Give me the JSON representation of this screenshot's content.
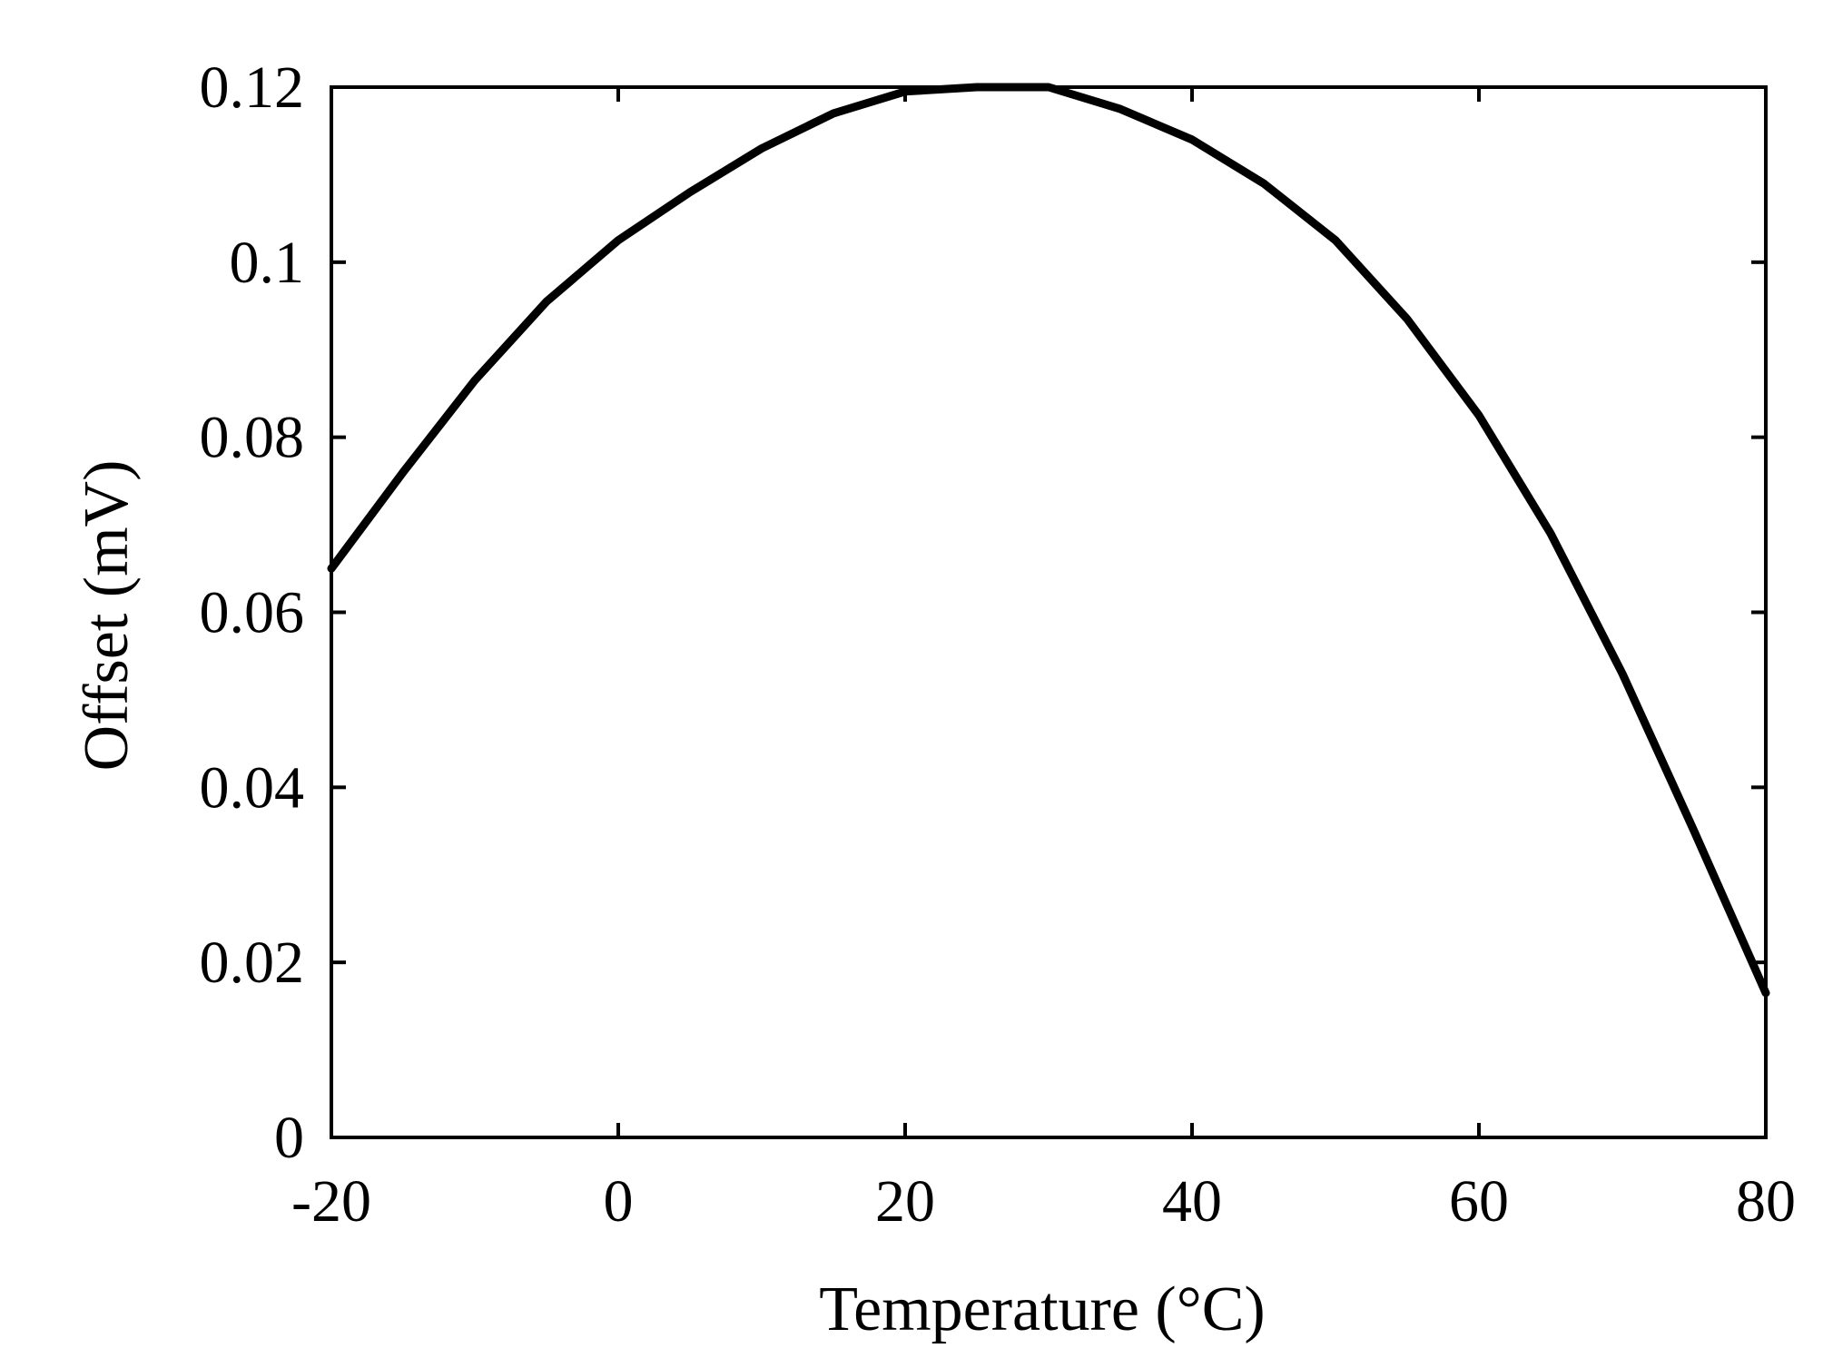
{
  "chart_data": {
    "type": "line",
    "title": "",
    "xlabel": "Temperature (°C)",
    "ylabel": "Offset (mV)",
    "xlim": [
      -20,
      80
    ],
    "ylim": [
      0,
      0.12
    ],
    "xticks": [
      -20,
      0,
      20,
      40,
      60,
      80
    ],
    "yticks": [
      0,
      0.02,
      0.04,
      0.06,
      0.08,
      0.1,
      0.12
    ],
    "xtick_labels": [
      "-20",
      "0",
      "20",
      "40",
      "60",
      "80"
    ],
    "ytick_labels": [
      "0",
      "0.02",
      "0.04",
      "0.06",
      "0.08",
      "0.1",
      "0.12"
    ],
    "grid": false,
    "line_color": "#000000",
    "series": [
      {
        "x": [
          -20,
          -15,
          -10,
          -5,
          0,
          5,
          10,
          15,
          20,
          25,
          30,
          35,
          40,
          45,
          50,
          55,
          60,
          65,
          70,
          75,
          80
        ],
        "y": [
          0.065,
          0.076,
          0.0865,
          0.0955,
          0.1025,
          0.108,
          0.113,
          0.117,
          0.1195,
          0.12,
          0.12,
          0.1175,
          0.114,
          0.109,
          0.1025,
          0.0935,
          0.0825,
          0.069,
          0.053,
          0.035,
          0.0165
        ]
      }
    ]
  }
}
